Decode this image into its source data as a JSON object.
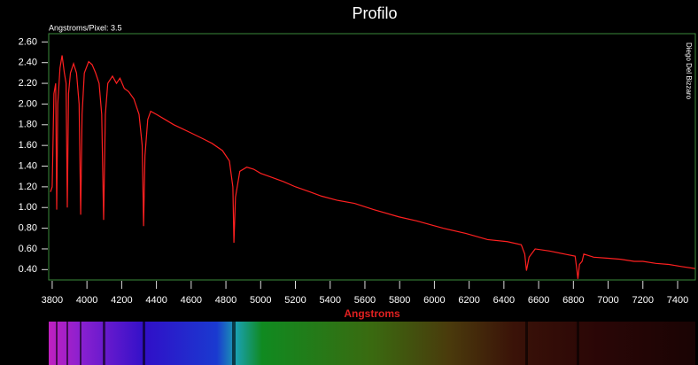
{
  "chart_data": {
    "type": "line",
    "title": "Profilo",
    "subtitle": "Angstroms/Pixel: 3.5",
    "x_label": "Angstroms",
    "annotation": "Diego Del Bizzaro",
    "x": [
      3790,
      3800,
      3810,
      3820,
      3826,
      3832,
      3845,
      3857,
      3870,
      3880,
      3887,
      3894,
      3905,
      3923,
      3940,
      3955,
      3964,
      3972,
      3985,
      4010,
      4030,
      4050,
      4070,
      4085,
      4096,
      4106,
      4120,
      4147,
      4170,
      4190,
      4215,
      4240,
      4270,
      4300,
      4318,
      4326,
      4334,
      4350,
      4367,
      4400,
      4450,
      4500,
      4550,
      4600,
      4673,
      4720,
      4780,
      4820,
      4840,
      4846,
      4855,
      4880,
      4920,
      4960,
      5000,
      5050,
      5132,
      5200,
      5285,
      5350,
      5440,
      5540,
      5650,
      5795,
      5900,
      6050,
      6180,
      6306,
      6420,
      6500,
      6520,
      6530,
      6545,
      6580,
      6662,
      6750,
      6810,
      6820,
      6826,
      6835,
      6850,
      6860,
      6917,
      7000,
      7071,
      7150,
      7200,
      7275,
      7350,
      7420,
      7500
    ],
    "values": [
      1.15,
      1.2,
      2.1,
      2.2,
      0.98,
      2.0,
      2.35,
      2.47,
      2.3,
      2.2,
      1.0,
      2.1,
      2.3,
      2.39,
      2.3,
      2.0,
      0.93,
      1.9,
      2.3,
      2.41,
      2.38,
      2.3,
      2.2,
      1.9,
      0.88,
      1.9,
      2.2,
      2.27,
      2.2,
      2.25,
      2.15,
      2.12,
      2.05,
      1.9,
      1.6,
      0.82,
      1.5,
      1.85,
      1.93,
      1.9,
      1.85,
      1.8,
      1.76,
      1.72,
      1.66,
      1.62,
      1.55,
      1.45,
      1.2,
      0.66,
      1.1,
      1.35,
      1.39,
      1.37,
      1.33,
      1.3,
      1.25,
      1.2,
      1.15,
      1.11,
      1.07,
      1.04,
      0.98,
      0.91,
      0.87,
      0.8,
      0.75,
      0.69,
      0.67,
      0.64,
      0.55,
      0.39,
      0.52,
      0.6,
      0.58,
      0.55,
      0.53,
      0.4,
      0.31,
      0.45,
      0.48,
      0.55,
      0.52,
      0.51,
      0.5,
      0.48,
      0.48,
      0.46,
      0.45,
      0.43,
      0.41
    ],
    "color": "#ff2020",
    "xlim": [
      3780,
      7502
    ],
    "ylim": [
      0.3,
      2.68
    ],
    "xticks": [
      3800,
      4000,
      4200,
      4400,
      4600,
      4800,
      5000,
      5200,
      5400,
      5600,
      5800,
      6000,
      6200,
      6400,
      6600,
      6800,
      7000,
      7200,
      7400
    ],
    "yticks": [
      {
        "value": 0.4,
        "label": "0.40"
      },
      {
        "value": 0.6,
        "label": "0.60"
      },
      {
        "value": 0.8,
        "label": "0.80"
      },
      {
        "value": 1.0,
        "label": "1.00"
      },
      {
        "value": 1.2,
        "label": "1.20"
      },
      {
        "value": 1.4,
        "label": "1.40"
      },
      {
        "value": 1.6,
        "label": "1.60"
      },
      {
        "value": 1.8,
        "label": "1.80"
      },
      {
        "value": 2.0,
        "label": "2.00"
      },
      {
        "value": 2.2,
        "label": "2.20"
      },
      {
        "value": 2.4,
        "label": "2.40"
      },
      {
        "value": 2.6,
        "label": "2.60"
      }
    ]
  }
}
